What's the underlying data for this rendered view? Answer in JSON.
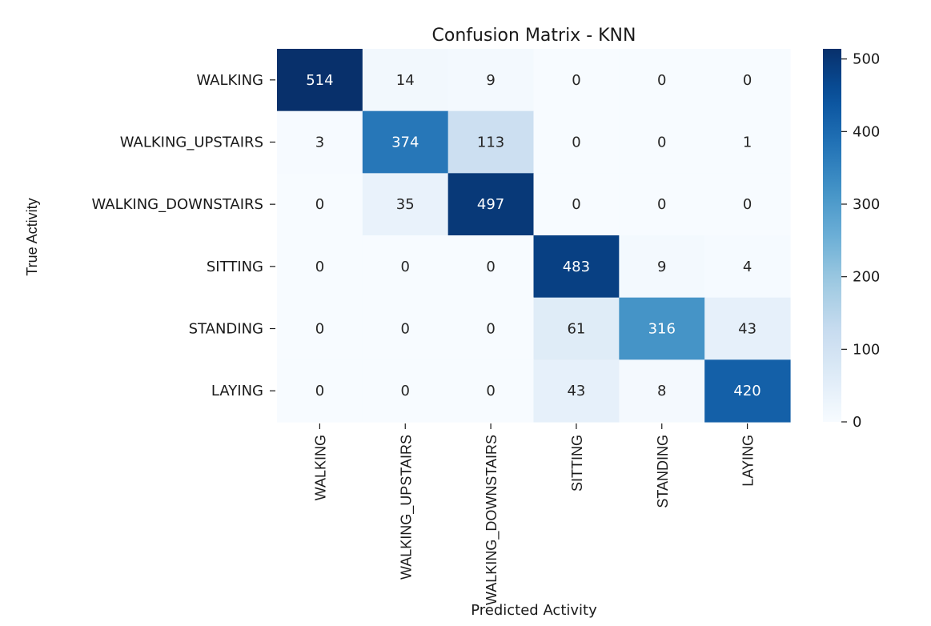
{
  "chart_data": {
    "type": "heatmap",
    "title": "Confusion Matrix - KNN",
    "xlabel": "Predicted Activity",
    "ylabel": "True Activity",
    "x_categories": [
      "WALKING",
      "WALKING_UPSTAIRS",
      "WALKING_DOWNSTAIRS",
      "SITTING",
      "STANDING",
      "LAYING"
    ],
    "y_categories": [
      "WALKING",
      "WALKING_UPSTAIRS",
      "WALKING_DOWNSTAIRS",
      "SITTING",
      "STANDING",
      "LAYING"
    ],
    "values": [
      [
        514,
        14,
        9,
        0,
        0,
        0
      ],
      [
        3,
        374,
        113,
        0,
        0,
        1
      ],
      [
        0,
        35,
        497,
        0,
        0,
        0
      ],
      [
        0,
        0,
        0,
        483,
        9,
        4
      ],
      [
        0,
        0,
        0,
        61,
        316,
        43
      ],
      [
        0,
        0,
        0,
        43,
        8,
        420
      ]
    ],
    "colormap": "Blues",
    "color_range": [
      0,
      514
    ],
    "colorbar_ticks": [
      0,
      100,
      200,
      300,
      400,
      500
    ],
    "annotations": true
  }
}
